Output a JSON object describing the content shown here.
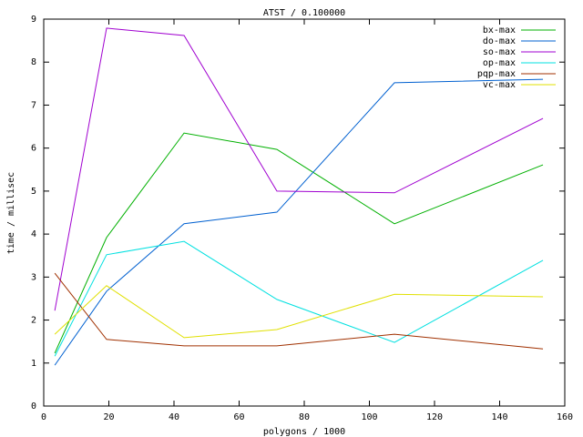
{
  "chart_data": {
    "type": "line",
    "title": "ATST / 0.100000",
    "x_label": "polygons / 1000",
    "y_label": "time / millisec",
    "x": [
      3.4,
      19.3,
      43.1,
      71.6,
      107.7,
      153.3
    ],
    "series": [
      {
        "name": "bx-max",
        "color": "#00b000",
        "values": [
          1.23,
          3.92,
          6.35,
          5.97,
          4.24,
          5.61
        ]
      },
      {
        "name": "do-max",
        "color": "#0060d0",
        "values": [
          0.95,
          2.67,
          4.24,
          4.51,
          7.52,
          7.6
        ]
      },
      {
        "name": "so-max",
        "color": "#a000d0",
        "values": [
          2.22,
          8.79,
          8.62,
          5.0,
          4.96,
          6.69
        ]
      },
      {
        "name": "op-max",
        "color": "#00e0e0",
        "values": [
          1.16,
          3.52,
          3.83,
          2.48,
          1.48,
          3.39
        ]
      },
      {
        "name": "pqp-max",
        "color": "#a03000",
        "values": [
          3.09,
          1.55,
          1.4,
          1.4,
          1.67,
          1.33
        ]
      },
      {
        "name": "vc-max",
        "color": "#e0e000",
        "values": [
          1.67,
          2.8,
          1.59,
          1.78,
          2.6,
          2.54
        ]
      }
    ],
    "xlim": [
      0,
      160
    ],
    "xticks": [
      0,
      20,
      40,
      60,
      80,
      100,
      120,
      140,
      160
    ],
    "ylim": [
      0,
      9
    ],
    "yticks": [
      0,
      1,
      2,
      3,
      4,
      5,
      6,
      7,
      8,
      9
    ],
    "legend": "top-right"
  }
}
